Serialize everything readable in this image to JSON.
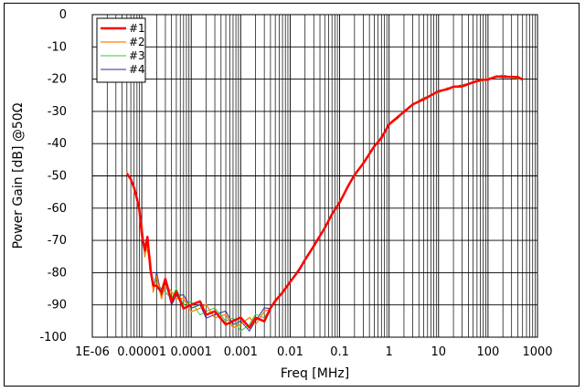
{
  "chart_data": {
    "type": "line",
    "title": "",
    "xlabel": "Freq [MHz]",
    "ylabel": "Power Gain [dB] @50Ω",
    "x_scale": "log",
    "xlim": [
      1e-06,
      1000
    ],
    "ylim": [
      -100,
      0
    ],
    "x_tick_labels": [
      "1E-06",
      "0.00001",
      "0.0001",
      "0.001",
      "0.01",
      "0.1",
      "1",
      "10",
      "100",
      "1000"
    ],
    "y_ticks": [
      0,
      -10,
      -20,
      -30,
      -40,
      -50,
      -60,
      -70,
      -80,
      -90,
      -100
    ],
    "grid": true,
    "legend_position": "top-left",
    "series": [
      {
        "name": "#1",
        "color": "#ff0000",
        "width": 2.5
      },
      {
        "name": "#2",
        "color": "#ff8000",
        "width": 1.3
      },
      {
        "name": "#3",
        "color": "#33cc33",
        "width": 1.0
      },
      {
        "name": "#4",
        "color": "#2a2a9a",
        "width": 1.0
      }
    ],
    "x": [
      5e-06,
      6e-06,
      7e-06,
      8e-06,
      9e-06,
      1e-05,
      1.15e-05,
      1.3e-05,
      1.5e-05,
      1.7e-05,
      2e-05,
      2.5e-05,
      3e-05,
      4e-05,
      5e-05,
      7e-05,
      0.0001,
      0.00015,
      0.0002,
      0.0003,
      0.0005,
      0.0007,
      0.001,
      0.0015,
      0.002,
      0.003,
      0.004,
      0.005,
      0.007,
      0.01,
      0.015,
      0.02,
      0.03,
      0.05,
      0.07,
      0.1,
      0.15,
      0.2,
      0.3,
      0.5,
      0.7,
      1,
      1.5,
      2,
      3,
      5,
      7,
      10,
      15,
      20,
      30,
      50,
      70,
      100,
      150,
      200,
      300,
      400,
      500
    ],
    "y": [
      -49,
      -51,
      -54,
      -57,
      -61,
      -66,
      -73,
      -71,
      -78,
      -85,
      -82,
      -86,
      -84,
      -88,
      -87,
      -89,
      -90,
      -91,
      -92,
      -93,
      -94,
      -95,
      -96,
      -96,
      -95,
      -93,
      -91,
      -89,
      -86,
      -83,
      -79,
      -76,
      -72,
      -66,
      -62,
      -58,
      -53,
      -50,
      -46,
      -41,
      -38,
      -34,
      -32,
      -30,
      -28,
      -26,
      -25,
      -24,
      -23,
      -22.5,
      -22,
      -21,
      -20.5,
      -20,
      -19.3,
      -19,
      -19.3,
      -19.6,
      -20
    ]
  }
}
